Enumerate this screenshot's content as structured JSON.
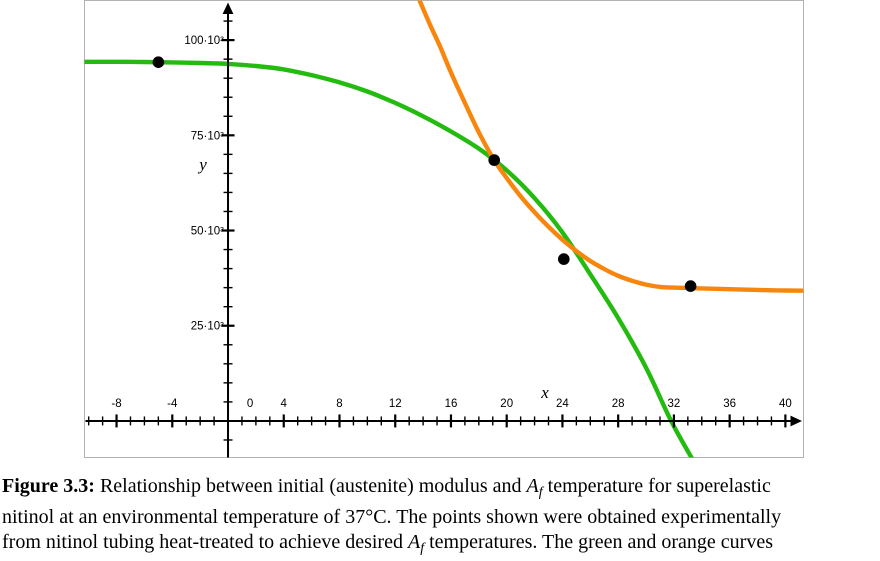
{
  "figure": {
    "caption": {
      "lines": [
        [
          {
            "text": "Figure 3.3:",
            "style": "bold"
          },
          {
            "text": "  Relationship between initial (austenite) modulus and ",
            "style": "normal"
          },
          {
            "text": "A",
            "style": "italic"
          },
          {
            "text": "f",
            "style": "subitalic"
          },
          {
            "text": " temperature for superelastic",
            "style": "normal"
          }
        ],
        [
          {
            "text": "nitinol at an environmental temperature of 37°C.  The points shown were obtained experimentally",
            "style": "normal"
          }
        ],
        [
          {
            "text": "from nitinol tubing heat-treated to achieve desired ",
            "style": "normal"
          },
          {
            "text": "A",
            "style": "italic"
          },
          {
            "text": "f",
            "style": "subitalic"
          },
          {
            "text": " temperatures.  The green and orange curves",
            "style": "normal"
          }
        ]
      ]
    }
  },
  "chart_data": {
    "type": "line",
    "title": "",
    "xlabel": "x",
    "ylabel": "y",
    "xlim": [
      -10.3,
      41.3
    ],
    "ylim": [
      -9600,
      110400
    ],
    "grid": false,
    "legend": false,
    "x_axis": {
      "minor_step": 1,
      "major_step": 4,
      "tick_label_values": [
        -8,
        -4,
        0,
        4,
        8,
        12,
        16,
        20,
        24,
        28,
        32,
        36,
        40
      ]
    },
    "y_axis": {
      "minor_step": 5000,
      "major_step": 25000,
      "tick_labels": [
        {
          "value": 100000,
          "label": "100·10³"
        },
        {
          "value": 75000,
          "label": "75·10³"
        },
        {
          "value": 50000,
          "label": "50·10³"
        },
        {
          "value": 25000,
          "label": "25·10³"
        }
      ]
    },
    "series": [
      {
        "name": "green-curve",
        "color": "#24bb10",
        "points": [
          [
            -10.3,
            94300
          ],
          [
            -8,
            94300
          ],
          [
            -6,
            94250
          ],
          [
            -4,
            94150
          ],
          [
            -2,
            94000
          ],
          [
            0,
            93750
          ],
          [
            2,
            93200
          ],
          [
            4,
            92300
          ],
          [
            6,
            90800
          ],
          [
            8,
            88900
          ],
          [
            10,
            86500
          ],
          [
            12,
            83500
          ],
          [
            14,
            80000
          ],
          [
            16,
            76000
          ],
          [
            18,
            71500
          ],
          [
            20,
            65800
          ],
          [
            22,
            58500
          ],
          [
            24,
            49500
          ],
          [
            26,
            38500
          ],
          [
            28,
            27000
          ],
          [
            30,
            14000
          ],
          [
            31.8,
            0
          ],
          [
            33.4,
            -10500
          ]
        ]
      },
      {
        "name": "orange-curve",
        "color": "#f8860d",
        "points": [
          [
            13.75,
            110400
          ],
          [
            14.5,
            104000
          ],
          [
            15.2,
            98500
          ],
          [
            16,
            91500
          ],
          [
            17,
            83500
          ],
          [
            18,
            75800
          ],
          [
            19.1,
            68500
          ],
          [
            20,
            63800
          ],
          [
            21,
            59000
          ],
          [
            22,
            54800
          ],
          [
            23,
            51000
          ],
          [
            24,
            47600
          ],
          [
            25,
            44600
          ],
          [
            26,
            42000
          ],
          [
            27,
            39900
          ],
          [
            28,
            38100
          ],
          [
            29,
            36800
          ],
          [
            30,
            35800
          ],
          [
            31,
            35200
          ],
          [
            32,
            35000
          ],
          [
            34,
            34800
          ],
          [
            36,
            34600
          ],
          [
            38,
            34400
          ],
          [
            40,
            34250
          ],
          [
            41.3,
            34200
          ]
        ]
      }
    ],
    "scatter": {
      "name": "experimental-points",
      "color": "#000000",
      "points": [
        [
          -5,
          94200
        ],
        [
          19.1,
          68500
        ],
        [
          24.1,
          42500
        ],
        [
          33.2,
          35400
        ]
      ]
    },
    "colors": {
      "axis": "#000000",
      "frame_border": "#b3b3b3",
      "background": "#ffffff"
    }
  }
}
